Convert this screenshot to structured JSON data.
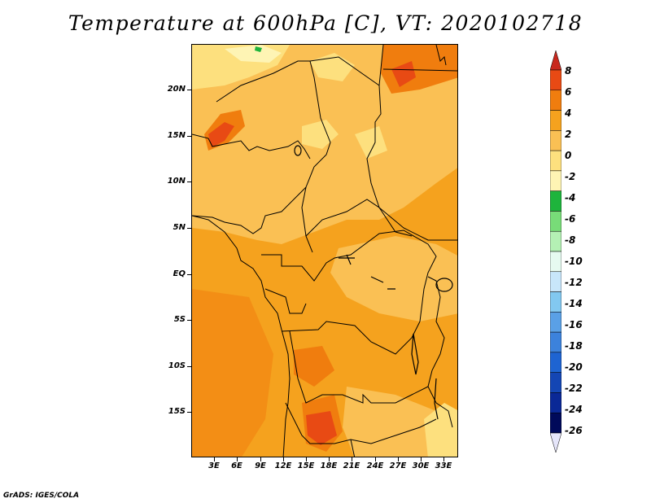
{
  "title": "Temperature at 600hPa [C], VT: 2020102718",
  "credit": "GrADS: IGES/COLA",
  "map": {
    "lat_labels": [
      "20N",
      "15N",
      "10N",
      "5N",
      "EQ",
      "5S",
      "10S",
      "15S"
    ],
    "lon_labels": [
      "3E",
      "6E",
      "9E",
      "12E",
      "15E",
      "18E",
      "21E",
      "24E",
      "27E",
      "30E",
      "33E"
    ]
  },
  "colorbar": {
    "labels": [
      "8",
      "6",
      "4",
      "2",
      "0",
      "-2",
      "-4",
      "-6",
      "-8",
      "-10",
      "-12",
      "-14",
      "-16",
      "-18",
      "-20",
      "-22",
      "-24",
      "-26"
    ],
    "colors": [
      "#c8281e",
      "#e84a14",
      "#f07d0e",
      "#f5a21e",
      "#fac054",
      "#fde07e",
      "#fef4b4",
      "#1eb43c",
      "#78dc78",
      "#b4f0b4",
      "#e6faf0",
      "#c8e6fa",
      "#82c8f0",
      "#5aa0e6",
      "#3c82dc",
      "#1e64d2",
      "#1446b4",
      "#0a2896",
      "#000a5a",
      "#e6e6fa"
    ]
  }
}
